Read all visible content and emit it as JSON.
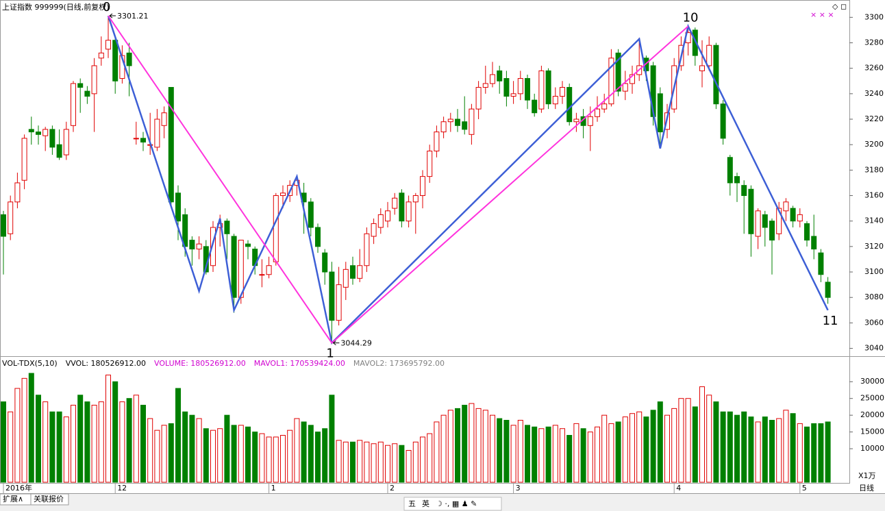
{
  "chart_data": {
    "type": "candlestick",
    "title": "上证指数 999999(日线,前复权)",
    "ylim": [
      3036,
      3312
    ],
    "yticks": [
      3040,
      3060,
      3080,
      3100,
      3120,
      3140,
      3160,
      3180,
      3200,
      3220,
      3240,
      3260,
      3280,
      3300
    ],
    "up_color": "#e00000",
    "down_color": "#008000",
    "candles": [
      [
        3145,
        3148,
        3098,
        3128
      ],
      [
        3130,
        3160,
        3125,
        3155
      ],
      [
        3155,
        3178,
        3150,
        3170
      ],
      [
        3172,
        3208,
        3165,
        3205
      ],
      [
        3212,
        3222,
        3200,
        3210
      ],
      [
        3210,
        3215,
        3200,
        3208
      ],
      [
        3207,
        3214,
        3195,
        3212
      ],
      [
        3212,
        3215,
        3192,
        3198
      ],
      [
        3200,
        3212,
        3188,
        3190
      ],
      [
        3192,
        3218,
        3188,
        3212
      ],
      [
        3215,
        3250,
        3210,
        3248
      ],
      [
        3248,
        3252,
        3225,
        3245
      ],
      [
        3242,
        3246,
        3232,
        3238
      ],
      [
        3240,
        3268,
        3210,
        3262
      ],
      [
        3268,
        3285,
        3262,
        3272
      ],
      [
        3275,
        3301.21,
        3268,
        3282
      ],
      [
        3282,
        3285,
        3240,
        3250
      ],
      [
        3252,
        3278,
        3248,
        3270
      ],
      [
        3272,
        3280,
        3238,
        3262
      ],
      [
        3205,
        3218,
        3200,
        3205
      ],
      [
        3205,
        3210,
        3195,
        3202
      ],
      [
        3200,
        3225,
        3192,
        3200
      ],
      [
        3198,
        3228,
        3195,
        3220
      ],
      [
        3215,
        3230,
        3205,
        3225
      ],
      [
        3245,
        3245,
        3152,
        3155
      ],
      [
        3162,
        3168,
        3125,
        3140
      ],
      [
        3145,
        3150,
        3112,
        3120
      ],
      [
        3125,
        3128,
        3105,
        3118
      ],
      [
        3118,
        3128,
        3110,
        3122
      ],
      [
        3120,
        3125,
        3098,
        3100
      ],
      [
        3105,
        3140,
        3100,
        3135
      ],
      [
        3135,
        3145,
        3120,
        3138
      ],
      [
        3140,
        3142,
        3110,
        3130
      ],
      [
        3128,
        3130,
        3068,
        3080
      ],
      [
        3080,
        3125,
        3075,
        3125
      ],
      [
        3122,
        3125,
        3110,
        3120
      ],
      [
        3118,
        3120,
        3098,
        3105
      ],
      [
        3098,
        3110,
        3088,
        3098
      ],
      [
        3098,
        3112,
        3095,
        3105
      ],
      [
        3108,
        3162,
        3105,
        3160
      ],
      [
        3160,
        3168,
        3150,
        3162
      ],
      [
        3160,
        3172,
        3155,
        3168
      ],
      [
        3168,
        3176,
        3160,
        3172
      ],
      [
        3162,
        3170,
        3130,
        3155
      ],
      [
        3155,
        3158,
        3128,
        3135
      ],
      [
        3135,
        3138,
        3115,
        3120
      ],
      [
        3115,
        3118,
        3090,
        3100
      ],
      [
        3100,
        3108,
        3044.29,
        3062
      ],
      [
        3062,
        3104,
        3058,
        3090
      ],
      [
        3088,
        3108,
        3078,
        3102
      ],
      [
        3105,
        3112,
        3090,
        3095
      ],
      [
        3095,
        3118,
        3092,
        3105
      ],
      [
        3105,
        3135,
        3100,
        3130
      ],
      [
        3128,
        3142,
        3122,
        3138
      ],
      [
        3135,
        3150,
        3130,
        3145
      ],
      [
        3140,
        3155,
        3135,
        3148
      ],
      [
        3150,
        3162,
        3145,
        3158
      ],
      [
        3162,
        3165,
        3135,
        3140
      ],
      [
        3140,
        3160,
        3135,
        3155
      ],
      [
        3155,
        3162,
        3130,
        3160
      ],
      [
        3160,
        3180,
        3150,
        3175
      ],
      [
        3175,
        3200,
        3170,
        3195
      ],
      [
        3195,
        3215,
        3190,
        3210
      ],
      [
        3210,
        3222,
        3205,
        3218
      ],
      [
        3218,
        3225,
        3210,
        3220
      ],
      [
        3220,
        3228,
        3210,
        3215
      ],
      [
        3218,
        3238,
        3208,
        3212
      ],
      [
        3208,
        3232,
        3200,
        3228
      ],
      [
        3228,
        3250,
        3220,
        3245
      ],
      [
        3245,
        3262,
        3240,
        3248
      ],
      [
        3248,
        3265,
        3245,
        3255
      ],
      [
        3258,
        3262,
        3240,
        3250
      ],
      [
        3252,
        3258,
        3230,
        3238
      ],
      [
        3238,
        3250,
        3232,
        3240
      ],
      [
        3240,
        3258,
        3235,
        3252
      ],
      [
        3252,
        3255,
        3228,
        3235
      ],
      [
        3235,
        3240,
        3222,
        3225
      ],
      [
        3228,
        3262,
        3225,
        3258
      ],
      [
        3258,
        3260,
        3228,
        3232
      ],
      [
        3232,
        3245,
        3228,
        3238
      ],
      [
        3238,
        3250,
        3232,
        3245
      ],
      [
        3245,
        3248,
        3215,
        3218
      ],
      [
        3218,
        3225,
        3210,
        3220
      ],
      [
        3222,
        3228,
        3205,
        3215
      ],
      [
        3215,
        3230,
        3195,
        3222
      ],
      [
        3222,
        3238,
        3218,
        3228
      ],
      [
        3228,
        3240,
        3225,
        3232
      ],
      [
        3232,
        3275,
        3230,
        3268
      ],
      [
        3272,
        3275,
        3238,
        3242
      ],
      [
        3242,
        3258,
        3235,
        3248
      ],
      [
        3248,
        3262,
        3240,
        3255
      ],
      [
        3255,
        3284,
        3250,
        3262
      ],
      [
        3268,
        3270,
        3250,
        3258
      ],
      [
        3262,
        3265,
        3215,
        3222
      ],
      [
        3240,
        3245,
        3198,
        3210
      ],
      [
        3212,
        3232,
        3205,
        3225
      ],
      [
        3228,
        3268,
        3225,
        3262
      ],
      [
        3262,
        3285,
        3258,
        3278
      ],
      [
        3280,
        3292,
        3270,
        3288
      ],
      [
        3290,
        3292,
        3262,
        3270
      ],
      [
        3258,
        3282,
        3245,
        3262
      ],
      [
        3262,
        3285,
        3258,
        3278
      ],
      [
        3278,
        3280,
        3228,
        3232
      ],
      [
        3232,
        3235,
        3200,
        3205
      ],
      [
        3190,
        3192,
        3160,
        3170
      ],
      [
        3175,
        3178,
        3155,
        3170
      ],
      [
        3168,
        3172,
        3130,
        3160
      ],
      [
        3165,
        3168,
        3112,
        3130
      ],
      [
        3128,
        3150,
        3118,
        3148
      ],
      [
        3145,
        3148,
        3120,
        3135
      ],
      [
        3140,
        3142,
        3098,
        3125
      ],
      [
        3130,
        3155,
        3125,
        3150
      ],
      [
        3148,
        3158,
        3140,
        3155
      ],
      [
        3150,
        3152,
        3135,
        3140
      ],
      [
        3140,
        3150,
        3135,
        3145
      ],
      [
        3138,
        3140,
        3120,
        3125
      ],
      [
        3128,
        3145,
        3110,
        3118
      ],
      [
        3115,
        3118,
        3092,
        3098
      ],
      [
        3092,
        3096,
        3075,
        3080
      ]
    ],
    "annotations": [
      {
        "x": 15,
        "y": 3301.21
      },
      {
        "x": 47,
        "y": 3044.29
      }
    ],
    "wave_lines": [
      {
        "color": "#3d5fd6",
        "points": [
          {
            "x": 15,
            "y": 3301.21,
            "label": "0"
          },
          {
            "x": 28,
            "y": 3085
          },
          {
            "x": 31,
            "y": 3142
          },
          {
            "x": 33,
            "y": 3070
          },
          {
            "x": 42,
            "y": 3175
          },
          {
            "x": 47,
            "y": 3044.29,
            "label": "1"
          },
          {
            "x": 91,
            "y": 3283
          },
          {
            "x": 94,
            "y": 3197
          },
          {
            "x": 98,
            "y": 3293,
            "label": "10"
          },
          {
            "x": 118,
            "y": 3070,
            "label": "11"
          }
        ]
      },
      {
        "color": "#ff33dd",
        "points": [
          {
            "x": 15,
            "y": 3301.21
          },
          {
            "x": 47,
            "y": 3044.29
          },
          {
            "x": 98,
            "y": 3293
          }
        ]
      }
    ],
    "volume": {
      "header": [
        "VOL-TDX(5,10)",
        "VVOL: 180526912.00",
        "VOLUME: 180526912.00",
        "MAVOL1: 170539424.00",
        "MAVOL2: 173695792.00"
      ],
      "header_colors": [
        "#000000",
        "#000000",
        "#d000d0",
        "#d000d0",
        "#808080"
      ],
      "ylim": [
        0,
        37000
      ],
      "yticks": [
        10000,
        15000,
        20000,
        25000,
        30000
      ],
      "unit": "X1万",
      "values": [
        24000,
        21000,
        28000,
        31000,
        32500,
        26000,
        24000,
        21000,
        21000,
        19500,
        23000,
        26000,
        24000,
        23000,
        24000,
        32000,
        30000,
        24000,
        25000,
        26000,
        23000,
        19000,
        15500,
        17000,
        17500,
        28000,
        21000,
        20000,
        19000,
        16000,
        15500,
        16000,
        20000,
        17000,
        17000,
        16500,
        15000,
        14500,
        13500,
        13500,
        14000,
        15500,
        19000,
        18000,
        17000,
        15000,
        16000,
        26000,
        12500,
        12000,
        12000,
        12500,
        12000,
        11500,
        12000,
        11000,
        11500,
        11000,
        9500,
        12000,
        13500,
        14500,
        18000,
        20000,
        21500,
        22000,
        23000,
        23500,
        22000,
        21500,
        20000,
        19000,
        18500,
        17000,
        18500,
        17000,
        16500,
        16000,
        16500,
        17000,
        16000,
        14000,
        17500,
        16000,
        15000,
        16500,
        20000,
        17500,
        18000,
        19500,
        20500,
        21000,
        19500,
        21500,
        24000,
        20000,
        22000,
        25000,
        25000,
        22500,
        28500,
        26000,
        24000,
        21000,
        21000,
        20000,
        21000,
        19500,
        18000,
        19500,
        18500,
        19000,
        21500,
        20500,
        17500,
        16500,
        17500,
        17500,
        18000
      ]
    },
    "date_labels": [
      {
        "index": 0,
        "label": "2016年"
      },
      {
        "index": 16,
        "label": "12"
      },
      {
        "index": 38,
        "label": "1"
      },
      {
        "index": 55,
        "label": "2"
      },
      {
        "index": 73,
        "label": "3"
      },
      {
        "index": 96,
        "label": "4"
      },
      {
        "index": 114,
        "label": "5"
      }
    ],
    "period": "日线",
    "tabs": [
      "扩展∧",
      "关联报价"
    ],
    "toolbar": [
      "五",
      "英"
    ]
  }
}
